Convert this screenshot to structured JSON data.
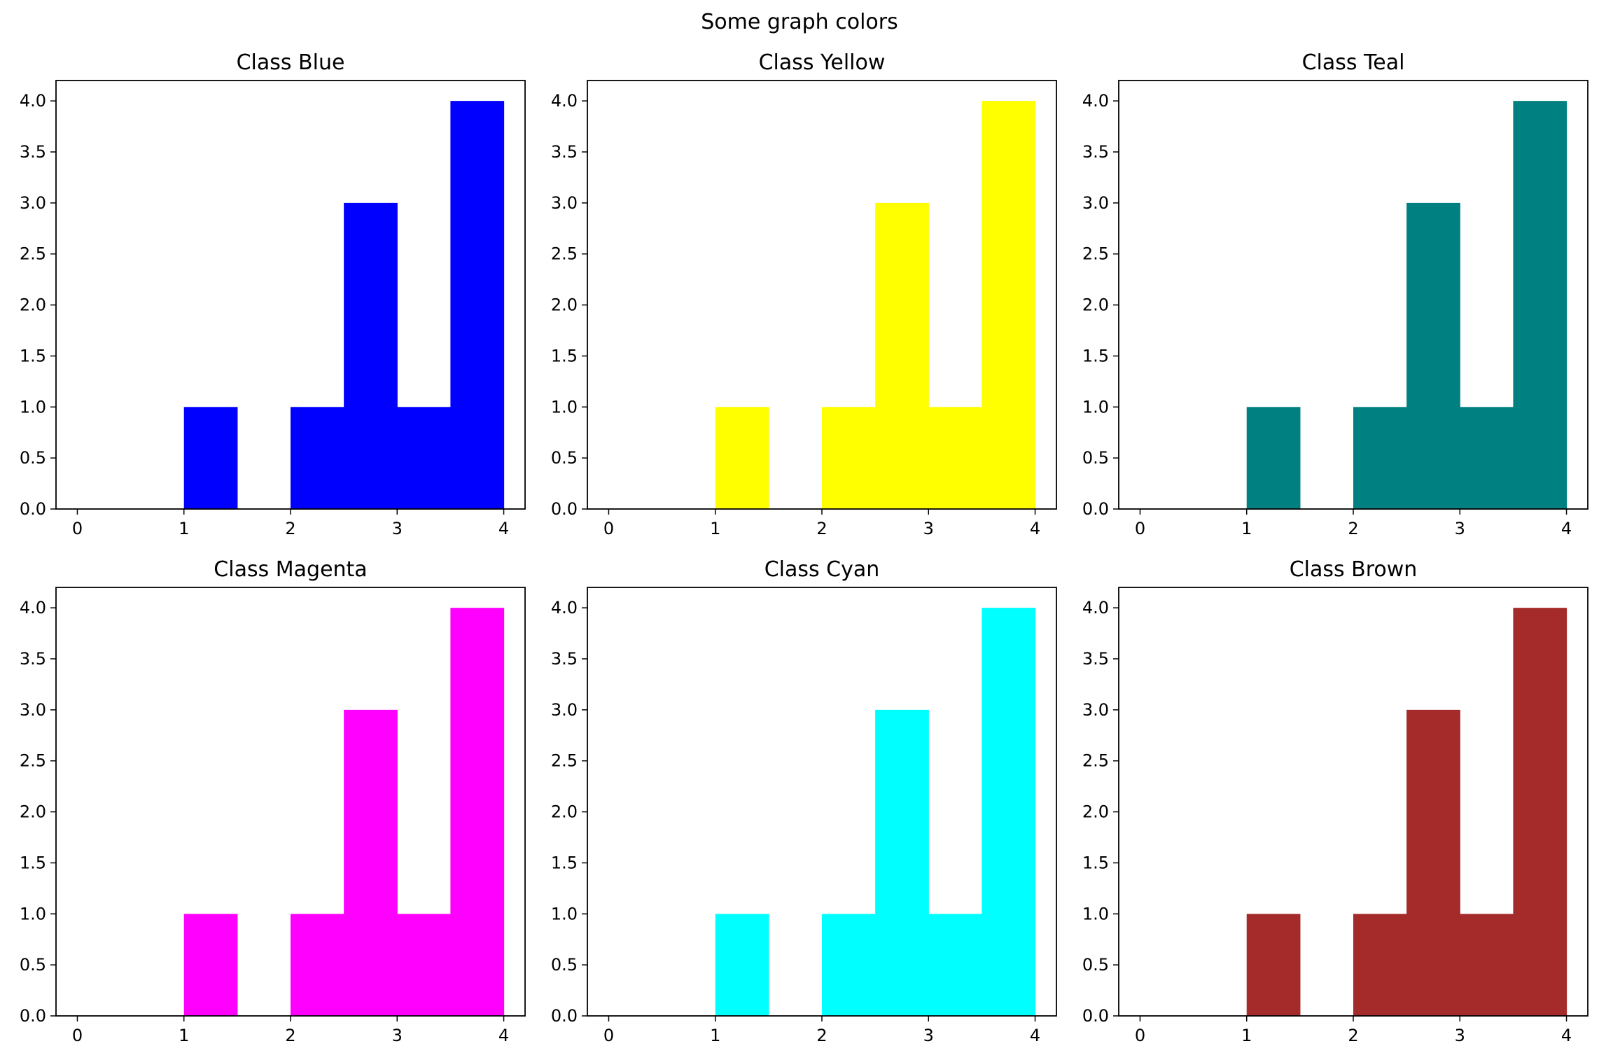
{
  "figure": {
    "title": "Some graph colors"
  },
  "chart_data": [
    {
      "type": "bar",
      "title": "Class Blue",
      "color": "#0000ff",
      "bin_edges": [
        0,
        0.5,
        1,
        1.5,
        2,
        2.5,
        3,
        3.5,
        4
      ],
      "values": [
        0,
        0,
        1,
        0,
        1,
        3,
        1,
        4
      ],
      "xlim": [
        -0.2,
        4.2
      ],
      "ylim": [
        0,
        4.2
      ],
      "xticks": [
        0,
        1,
        2,
        3,
        4
      ],
      "yticks": [
        "0.0",
        "0.5",
        "1.0",
        "1.5",
        "2.0",
        "2.5",
        "3.0",
        "3.5",
        "4.0"
      ],
      "xlabel": "",
      "ylabel": "",
      "grid": false
    },
    {
      "type": "bar",
      "title": "Class Yellow",
      "color": "#ffff00",
      "bin_edges": [
        0,
        0.5,
        1,
        1.5,
        2,
        2.5,
        3,
        3.5,
        4
      ],
      "values": [
        0,
        0,
        1,
        0,
        1,
        3,
        1,
        4
      ],
      "xlim": [
        -0.2,
        4.2
      ],
      "ylim": [
        0,
        4.2
      ],
      "xticks": [
        0,
        1,
        2,
        3,
        4
      ],
      "yticks": [
        "0.0",
        "0.5",
        "1.0",
        "1.5",
        "2.0",
        "2.5",
        "3.0",
        "3.5",
        "4.0"
      ],
      "xlabel": "",
      "ylabel": "",
      "grid": false
    },
    {
      "type": "bar",
      "title": "Class Teal",
      "color": "#008080",
      "bin_edges": [
        0,
        0.5,
        1,
        1.5,
        2,
        2.5,
        3,
        3.5,
        4
      ],
      "values": [
        0,
        0,
        1,
        0,
        1,
        3,
        1,
        4
      ],
      "xlim": [
        -0.2,
        4.2
      ],
      "ylim": [
        0,
        4.2
      ],
      "xticks": [
        0,
        1,
        2,
        3,
        4
      ],
      "yticks": [
        "0.0",
        "0.5",
        "1.0",
        "1.5",
        "2.0",
        "2.5",
        "3.0",
        "3.5",
        "4.0"
      ],
      "xlabel": "",
      "ylabel": "",
      "grid": false
    },
    {
      "type": "bar",
      "title": "Class Magenta",
      "color": "#ff00ff",
      "bin_edges": [
        0,
        0.5,
        1,
        1.5,
        2,
        2.5,
        3,
        3.5,
        4
      ],
      "values": [
        0,
        0,
        1,
        0,
        1,
        3,
        1,
        4
      ],
      "xlim": [
        -0.2,
        4.2
      ],
      "ylim": [
        0,
        4.2
      ],
      "xticks": [
        0,
        1,
        2,
        3,
        4
      ],
      "yticks": [
        "0.0",
        "0.5",
        "1.0",
        "1.5",
        "2.0",
        "2.5",
        "3.0",
        "3.5",
        "4.0"
      ],
      "xlabel": "",
      "ylabel": "",
      "grid": false
    },
    {
      "type": "bar",
      "title": "Class Cyan",
      "color": "#00ffff",
      "bin_edges": [
        0,
        0.5,
        1,
        1.5,
        2,
        2.5,
        3,
        3.5,
        4
      ],
      "values": [
        0,
        0,
        1,
        0,
        1,
        3,
        1,
        4
      ],
      "xlim": [
        -0.2,
        4.2
      ],
      "ylim": [
        0,
        4.2
      ],
      "xticks": [
        0,
        1,
        2,
        3,
        4
      ],
      "yticks": [
        "0.0",
        "0.5",
        "1.0",
        "1.5",
        "2.0",
        "2.5",
        "3.0",
        "3.5",
        "4.0"
      ],
      "xlabel": "",
      "ylabel": "",
      "grid": false
    },
    {
      "type": "bar",
      "title": "Class Brown",
      "color": "#a52a2a",
      "bin_edges": [
        0,
        0.5,
        1,
        1.5,
        2,
        2.5,
        3,
        3.5,
        4
      ],
      "values": [
        0,
        0,
        1,
        0,
        1,
        3,
        1,
        4
      ],
      "xlim": [
        -0.2,
        4.2
      ],
      "ylim": [
        0,
        4.2
      ],
      "xticks": [
        0,
        1,
        2,
        3,
        4
      ],
      "yticks": [
        "0.0",
        "0.5",
        "1.0",
        "1.5",
        "2.0",
        "2.5",
        "3.0",
        "3.5",
        "4.0"
      ],
      "xlabel": "",
      "ylabel": "",
      "grid": false
    }
  ]
}
